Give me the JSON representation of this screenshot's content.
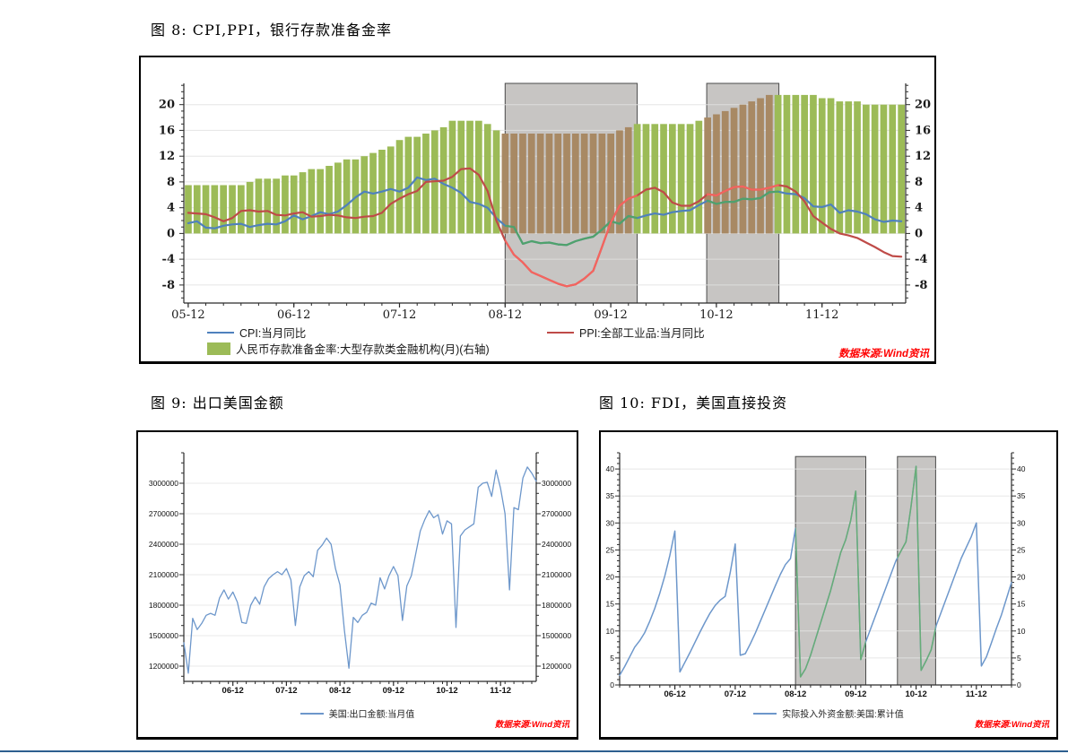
{
  "page": {
    "background": "#ffffff"
  },
  "figures": [
    {
      "title": "图 8:  CPI,PPI，银行存款准备金率",
      "source": "数据来源:Wind资讯",
      "legend": [
        {
          "label": "CPI:当月同比",
          "marker": "line",
          "color": "#4f81bd"
        },
        {
          "label": "PPI:全部工业品:当月同比",
          "marker": "line",
          "color": "#bf4b48"
        },
        {
          "label": "人民币存款准备金率:大型存款类金融机构(月)(右轴)",
          "marker": "swatch",
          "color": "#9cbb57"
        }
      ]
    },
    {
      "title": "图 9:  出口美国金额",
      "source": "数据来源:Wind资讯",
      "legend": [
        {
          "label": "美国:出口金额:当月值",
          "marker": "line",
          "color": "#6d97cb"
        }
      ]
    },
    {
      "title": "图 10:  FDI，美国直接投资",
      "source": "数据来源:Wind资讯",
      "legend": [
        {
          "label": "实际投入外资金额:美国:累计值",
          "marker": "line",
          "color": "#6d97cb"
        }
      ]
    }
  ],
  "chart_data": [
    {
      "type": "bar",
      "title": "CPI,PPI,银行存款准备金率",
      "x_start": "2005-12",
      "x_frequency": "monthly",
      "x_tick_labels": [
        "05-12",
        "06-12",
        "07-12",
        "08-12",
        "09-12",
        "10-12",
        "11-12"
      ],
      "x_tick_indices": [
        0,
        12,
        24,
        36,
        48,
        60,
        72
      ],
      "ylim": [
        -10.8,
        23.3
      ],
      "y_ticks": [
        -8,
        -4,
        0,
        4,
        8,
        12,
        16,
        20
      ],
      "y_minor": 1,
      "x_minor": 2,
      "grid": true,
      "legend_position": "bottom",
      "highlight_regions": [
        [
          36,
          51
        ],
        [
          58.9,
          67.1
        ]
      ],
      "bars": {
        "name": "人民币存款准备金率:大型存款类金融机构(月)(右轴)",
        "axis": "right",
        "color": "#9cbb57",
        "shaded_color": "#a88964",
        "values": [
          7.5,
          7.5,
          7.5,
          7.5,
          7.5,
          7.5,
          7.5,
          8,
          8.5,
          8.5,
          8.5,
          9,
          9,
          9.5,
          10,
          10,
          10.5,
          11,
          11.5,
          11.5,
          12,
          12.5,
          13,
          13.5,
          14.5,
          15,
          15,
          15.5,
          16,
          16.5,
          17.5,
          17.5,
          17.5,
          17.5,
          17,
          16,
          15.5,
          15.5,
          15.5,
          15.5,
          15.5,
          15.5,
          15.5,
          15.5,
          15.5,
          15.5,
          15.5,
          15.5,
          15.5,
          16,
          16.5,
          17,
          17,
          17,
          17,
          17,
          17,
          17,
          17.5,
          18,
          18.5,
          19,
          19.5,
          20,
          20.5,
          21,
          21.5,
          21.5,
          21.5,
          21.5,
          21.5,
          21.5,
          21,
          21,
          20.5,
          20.5,
          20.5,
          20,
          20,
          20,
          20,
          20
        ]
      },
      "series": [
        {
          "name": "CPI:当月同比",
          "color": "#4f81bd",
          "shaded_color": "#4fa26b",
          "values": [
            1.6,
            1.9,
            0.9,
            0.8,
            1.2,
            1.4,
            1.5,
            1.0,
            1.3,
            1.5,
            1.4,
            1.9,
            2.8,
            2.2,
            2.7,
            3.3,
            3.0,
            3.4,
            4.4,
            5.6,
            6.5,
            6.2,
            6.5,
            6.9,
            6.5,
            7.1,
            8.7,
            8.3,
            8.5,
            7.7,
            7.1,
            6.3,
            4.9,
            4.6,
            4.0,
            2.4,
            1.2,
            1.0,
            -1.6,
            -1.2,
            -1.5,
            -1.4,
            -1.7,
            -1.8,
            -1.2,
            -0.8,
            -0.5,
            0.6,
            1.9,
            1.5,
            2.7,
            2.4,
            2.8,
            3.1,
            2.9,
            3.3,
            3.5,
            3.6,
            4.4,
            5.1,
            4.6,
            4.9,
            4.9,
            5.4,
            5.3,
            5.5,
            6.4,
            6.5,
            6.2,
            6.1,
            5.5,
            4.2,
            4.1,
            4.5,
            3.2,
            3.6,
            3.4,
            3.0,
            2.2,
            1.8,
            2.0,
            1.9
          ]
        },
        {
          "name": "PPI:全部工业品:当月同比",
          "color": "#bf4b48",
          "shaded_color": "#f4645f",
          "values": [
            3.2,
            3.1,
            3.0,
            2.5,
            1.9,
            2.4,
            3.5,
            3.6,
            3.4,
            3.5,
            2.9,
            2.8,
            3.1,
            3.3,
            2.6,
            2.7,
            2.9,
            2.8,
            2.5,
            2.4,
            2.6,
            2.7,
            3.2,
            4.6,
            5.4,
            6.1,
            6.6,
            8.0,
            8.1,
            8.2,
            8.8,
            10.0,
            10.1,
            9.1,
            6.6,
            2.0,
            -1.1,
            -3.3,
            -4.5,
            -6.0,
            -6.6,
            -7.2,
            -7.8,
            -8.2,
            -7.9,
            -7.0,
            -5.8,
            -2.1,
            1.7,
            4.3,
            5.4,
            5.9,
            6.8,
            7.1,
            6.4,
            4.8,
            4.3,
            4.3,
            5.0,
            6.1,
            5.9,
            6.6,
            7.2,
            7.3,
            6.8,
            6.8,
            7.1,
            7.5,
            7.3,
            6.5,
            5.0,
            2.7,
            1.7,
            0.7,
            0.0,
            -0.3,
            -0.7,
            -1.4,
            -2.1,
            -2.9,
            -3.5,
            -3.6
          ]
        }
      ]
    },
    {
      "type": "line",
      "title": "出口美国金额",
      "x_start": "2006-01",
      "x_frequency": "monthly",
      "x_tick_labels": [
        "06-12",
        "07-12",
        "08-12",
        "09-12",
        "10-12",
        "11-12"
      ],
      "x_tick_indices": [
        11,
        23,
        35,
        47,
        59,
        71
      ],
      "ylim": [
        1050000,
        3300000
      ],
      "y_ticks": [
        1200000,
        1500000,
        1800000,
        2100000,
        2400000,
        2700000,
        3000000
      ],
      "y_minor": 100000,
      "x_minor": 2,
      "grid": true,
      "legend_position": "bottom",
      "highlight_regions": [],
      "series": [
        {
          "name": "美国:出口金额:当月值",
          "color": "#6d97cb",
          "values": [
            1430000,
            1130000,
            1670000,
            1560000,
            1620000,
            1700000,
            1720000,
            1700000,
            1870000,
            1950000,
            1860000,
            1930000,
            1830000,
            1630000,
            1620000,
            1800000,
            1880000,
            1810000,
            1980000,
            2060000,
            2100000,
            2130000,
            2100000,
            2160000,
            2050000,
            1600000,
            1980000,
            2090000,
            2130000,
            2080000,
            2340000,
            2390000,
            2460000,
            2400000,
            2160000,
            2000000,
            1550000,
            1180000,
            1680000,
            1630000,
            1700000,
            1730000,
            1820000,
            1800000,
            2070000,
            1960000,
            2090000,
            2180000,
            2090000,
            1650000,
            1990000,
            2090000,
            2310000,
            2530000,
            2640000,
            2730000,
            2660000,
            2690000,
            2500000,
            2630000,
            2600000,
            1580000,
            2480000,
            2540000,
            2570000,
            2600000,
            2960000,
            3000000,
            3010000,
            2870000,
            3130000,
            2950000,
            2700000,
            1950000,
            2760000,
            2740000,
            3050000,
            3160000,
            3100000,
            3020000
          ]
        }
      ]
    },
    {
      "type": "line",
      "title": "FDI,美国直接投资",
      "x_start": "2006-01",
      "x_frequency": "monthly",
      "x_tick_labels": [
        "06-12",
        "07-12",
        "08-12",
        "09-12",
        "10-12",
        "11-12"
      ],
      "x_tick_indices": [
        11,
        23,
        35,
        47,
        59,
        71
      ],
      "ylim": [
        0,
        43
      ],
      "y_ticks": [
        0,
        5,
        10,
        15,
        20,
        25,
        30,
        35,
        40
      ],
      "y_minor": 1,
      "x_minor": 2,
      "grid": true,
      "legend_position": "bottom",
      "highlight_regions": [
        [
          35,
          49
        ],
        [
          55.3,
          62.9
        ]
      ],
      "region_top_value": 42.3,
      "series": [
        {
          "name": "实际投入外资金额:美国:累计值",
          "color": "#6d97cb",
          "shaded_color": "#67ad76",
          "values": [
            1.8,
            3.4,
            5.2,
            7.0,
            8.2,
            9.7,
            11.8,
            14.2,
            17.0,
            20.2,
            24.0,
            28.5,
            2.4,
            4.2,
            6.0,
            7.9,
            9.8,
            11.6,
            13.3,
            14.7,
            15.7,
            16.4,
            20.8,
            26.1,
            5.5,
            5.8,
            7.6,
            9.6,
            11.8,
            14.0,
            16.2,
            18.4,
            20.5,
            22.3,
            23.4,
            29.0,
            1.5,
            3.0,
            5.5,
            8.5,
            11.5,
            14.5,
            17.5,
            21.0,
            24.5,
            26.9,
            30.5,
            35.9,
            4.7,
            8.0,
            10.5,
            13.0,
            15.5,
            18.0,
            20.5,
            23.0,
            24.8,
            26.5,
            33.0,
            40.5,
            2.7,
            4.5,
            6.5,
            11.0,
            13.5,
            16.0,
            18.5,
            21.0,
            23.5,
            25.5,
            27.5,
            30.0,
            3.5,
            5.2,
            7.8,
            10.5,
            13.0,
            16.0,
            19.0
          ]
        }
      ]
    }
  ]
}
